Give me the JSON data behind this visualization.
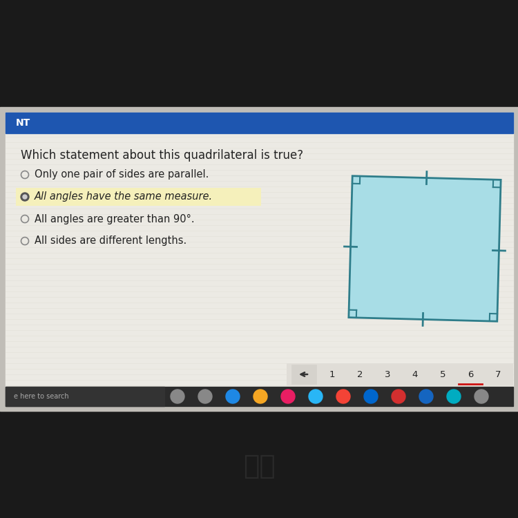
{
  "bg_top_color": "#1b5fad",
  "bg_screen_color": "#d8d5ce",
  "bg_content_color": "#eceae4",
  "question_text": "Which statement about this quadrilateral is true?",
  "options": [
    {
      "text": "Only one pair of sides are parallel.",
      "selected": false
    },
    {
      "text": "All angles have the same measure.",
      "selected": true
    },
    {
      "text": "All angles are greater than 90°.",
      "selected": false
    },
    {
      "text": "All sides are different lengths.",
      "selected": false
    }
  ],
  "quad_fill_color": "#a8dde6",
  "quad_edge_color": "#2e7d8a",
  "highlight_color": "#f5f0bb",
  "nav_numbers": [
    "1",
    "2",
    "3",
    "4",
    "5",
    "6",
    "7"
  ],
  "taskbar_dark": "#222222",
  "header_color": "#1e56b0",
  "header_text": "NT",
  "laptop_body_color": "#1a1a1a",
  "laptop_screen_bezel": "#555555",
  "screen_bg": "#eceae4",
  "nav_bar_bg": "#e0ddd7"
}
